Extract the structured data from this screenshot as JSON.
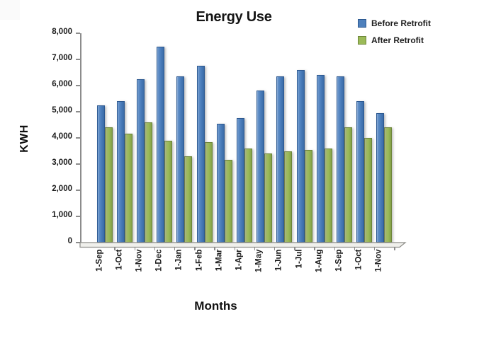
{
  "page": {
    "background": "#ffffff"
  },
  "chart_data": {
    "type": "bar",
    "title": "Energy Use",
    "xlabel": "Months",
    "ylabel": "KWH",
    "categories": [
      "1-Sep",
      "1-Oct",
      "1-Nov",
      "1-Dec",
      "1-Jan",
      "1-Feb",
      "1-Mar",
      "1-Apr",
      "1-May",
      "1-Jun",
      "1-Jul",
      "1-Aug",
      "1-Sep",
      "1-Oct",
      "1-Nov"
    ],
    "series": [
      {
        "name": "Before Retrofit",
        "color": "#4e80bc",
        "border_color": "#2d5991",
        "values": [
          5250,
          5400,
          6250,
          7500,
          6350,
          6750,
          4550,
          4750,
          5800,
          6350,
          6600,
          6400,
          6350,
          5400,
          4950
        ]
      },
      {
        "name": "After Retrofit",
        "color": "#9bba58",
        "border_color": "#6d8639",
        "values": [
          4400,
          4150,
          4600,
          3900,
          3300,
          3850,
          3150,
          3600,
          3400,
          3500,
          3550,
          3600,
          4400,
          4000,
          4400
        ]
      }
    ],
    "ylim": [
      0,
      8000
    ],
    "ytick_step": 1000,
    "ytick_labels": [
      "0",
      "1,000",
      "2,000",
      "3,000",
      "4,000",
      "5,000",
      "6,000",
      "7,000",
      "8,000"
    ],
    "grid": false,
    "legend_position": "top-right",
    "axis_color": "#8c8c8c",
    "text_color": "#1a1a1a"
  }
}
